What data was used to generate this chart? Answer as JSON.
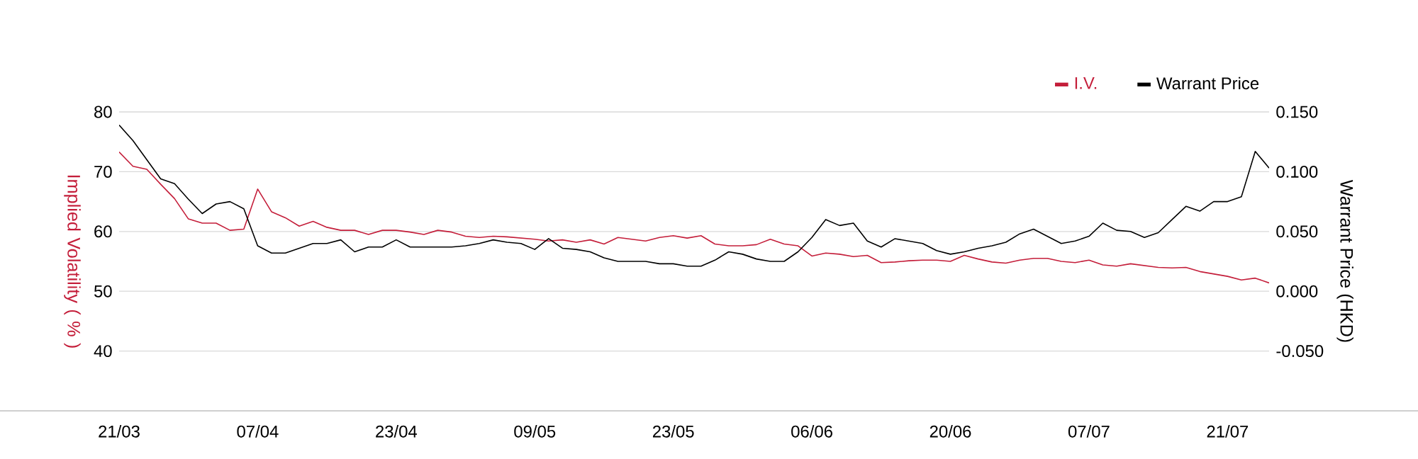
{
  "chart_data": {
    "type": "line",
    "categories": [
      "21/03",
      null,
      null,
      null,
      null,
      null,
      null,
      null,
      null,
      null,
      "07/04",
      null,
      null,
      null,
      null,
      null,
      null,
      null,
      null,
      null,
      "23/04",
      null,
      null,
      null,
      null,
      null,
      null,
      null,
      null,
      null,
      "09/05",
      null,
      null,
      null,
      null,
      null,
      null,
      null,
      null,
      null,
      "23/05",
      null,
      null,
      null,
      null,
      null,
      null,
      null,
      null,
      null,
      "06/06",
      null,
      null,
      null,
      null,
      null,
      null,
      null,
      null,
      null,
      "20/06",
      null,
      null,
      null,
      null,
      null,
      null,
      null,
      null,
      null,
      "07/07",
      null,
      null,
      null,
      null,
      null,
      null,
      null,
      null,
      null,
      "21/07",
      null,
      null,
      null
    ],
    "series": [
      {
        "name": "I.V.",
        "color": "#c41e3a",
        "values": [
          73.3,
          70.9,
          70.4,
          67.9,
          65.5,
          62.1,
          61.4,
          61.4,
          60.2,
          60.4,
          67.1,
          63.3,
          62.3,
          60.9,
          61.7,
          60.7,
          60.2,
          60.2,
          59.5,
          60.2,
          60.2,
          59.9,
          59.5,
          60.2,
          59.9,
          59.2,
          59.0,
          59.2,
          59.1,
          58.9,
          58.7,
          58.4,
          58.6,
          58.2,
          58.6,
          57.9,
          59.0,
          58.7,
          58.4,
          59.0,
          59.3,
          58.9,
          59.3,
          57.9,
          57.6,
          57.6,
          57.8,
          58.7,
          57.9,
          57.6,
          55.9,
          56.4,
          56.2,
          55.8,
          56.0,
          54.8,
          54.9,
          55.1,
          55.2,
          55.2,
          55.0,
          56.0,
          55.4,
          54.9,
          54.7,
          55.2,
          55.5,
          55.5,
          55.0,
          54.8,
          55.2,
          54.4,
          54.2,
          54.6,
          54.3,
          54.0,
          53.9,
          54.0,
          53.3,
          52.9,
          52.5,
          51.9,
          52.2,
          51.4
        ]
      },
      {
        "name": "Warrant Price",
        "color": "#000000",
        "axis": "y2",
        "values": [
          0.139,
          0.126,
          0.11,
          0.094,
          0.09,
          0.077,
          0.065,
          0.073,
          0.075,
          0.069,
          0.038,
          0.032,
          0.032,
          0.036,
          0.04,
          0.04,
          0.043,
          0.033,
          0.037,
          0.037,
          0.043,
          0.037,
          0.037,
          0.037,
          0.037,
          0.038,
          0.04,
          0.043,
          0.041,
          0.04,
          0.035,
          0.044,
          0.036,
          0.035,
          0.033,
          0.028,
          0.025,
          0.025,
          0.025,
          0.023,
          0.023,
          0.021,
          0.021,
          0.026,
          0.033,
          0.031,
          0.027,
          0.025,
          0.025,
          0.033,
          0.045,
          0.06,
          0.055,
          0.057,
          0.042,
          0.037,
          0.044,
          0.042,
          0.04,
          0.034,
          0.031,
          0.033,
          0.036,
          0.038,
          0.041,
          0.048,
          0.052,
          0.046,
          0.04,
          0.042,
          0.046,
          0.057,
          0.051,
          0.05,
          0.045,
          0.049,
          0.06,
          0.071,
          0.067,
          0.075,
          0.075,
          0.079,
          0.117,
          0.103
        ]
      }
    ],
    "ylabel": "Implied Volatility ( % )",
    "y2label": "Warrant Price (HKD)",
    "ylim": [
      30,
      80
    ],
    "yticks": [
      40,
      50,
      60,
      70,
      80
    ],
    "y2lim": [
      -0.1,
      0.15
    ],
    "y2ticks": [
      {
        "value": -0.05,
        "label": "-0.050"
      },
      {
        "value": 0,
        "label": "0.000"
      },
      {
        "value": 0.05,
        "label": "0.050"
      },
      {
        "value": 0.1,
        "label": "0.100"
      },
      {
        "value": 0.15,
        "label": "0.150"
      }
    ],
    "grid": "y",
    "legend": "top right"
  }
}
